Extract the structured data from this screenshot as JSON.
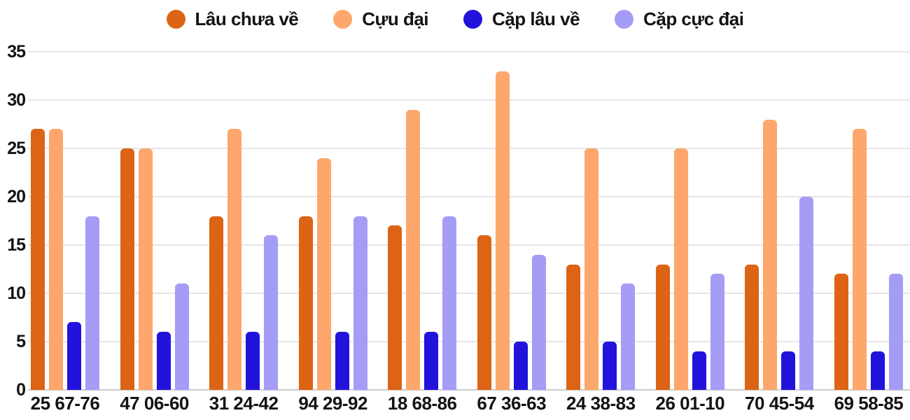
{
  "legend": {
    "items": [
      {
        "label": "Lâu chưa về",
        "color": "#dc6414"
      },
      {
        "label": "Cựu đại",
        "color": "#fda76c"
      },
      {
        "label": "Cặp lâu về",
        "color": "#2213dc"
      },
      {
        "label": "Cặp cực đại",
        "color": "#a59cf6"
      }
    ]
  },
  "chart_data": {
    "type": "bar",
    "title": "",
    "xlabel": "",
    "ylabel": "",
    "categories": [
      "25 67-76",
      "47 06-60",
      "31 24-42",
      "94 29-92",
      "18 68-86",
      "67 36-63",
      "24 38-83",
      "26 01-10",
      "70 45-54",
      "69 58-85"
    ],
    "series": [
      {
        "name": "Lâu chưa về",
        "color": "#dc6414",
        "values": [
          27,
          25,
          18,
          18,
          17,
          16,
          13,
          13,
          13,
          12
        ]
      },
      {
        "name": "Cựu đại",
        "color": "#fda76c",
        "values": [
          27,
          25,
          27,
          24,
          29,
          33,
          25,
          25,
          28,
          27
        ]
      },
      {
        "name": "Cặp lâu về",
        "color": "#2213dc",
        "values": [
          7,
          6,
          6,
          6,
          6,
          5,
          5,
          4,
          4,
          4
        ]
      },
      {
        "name": "Cặp cực đại",
        "color": "#a59cf6",
        "values": [
          18,
          11,
          16,
          18,
          18,
          14,
          11,
          12,
          20,
          12
        ]
      }
    ],
    "ylim": [
      0,
      35
    ],
    "yticks": [
      0,
      5,
      10,
      15,
      20,
      25,
      30,
      35
    ],
    "grid": true,
    "legend_position": "top",
    "colors": {
      "gridline": "#e6e6e6",
      "axis_line": "#cdcdcd",
      "text": "#131313",
      "background": "#ffffff"
    }
  }
}
